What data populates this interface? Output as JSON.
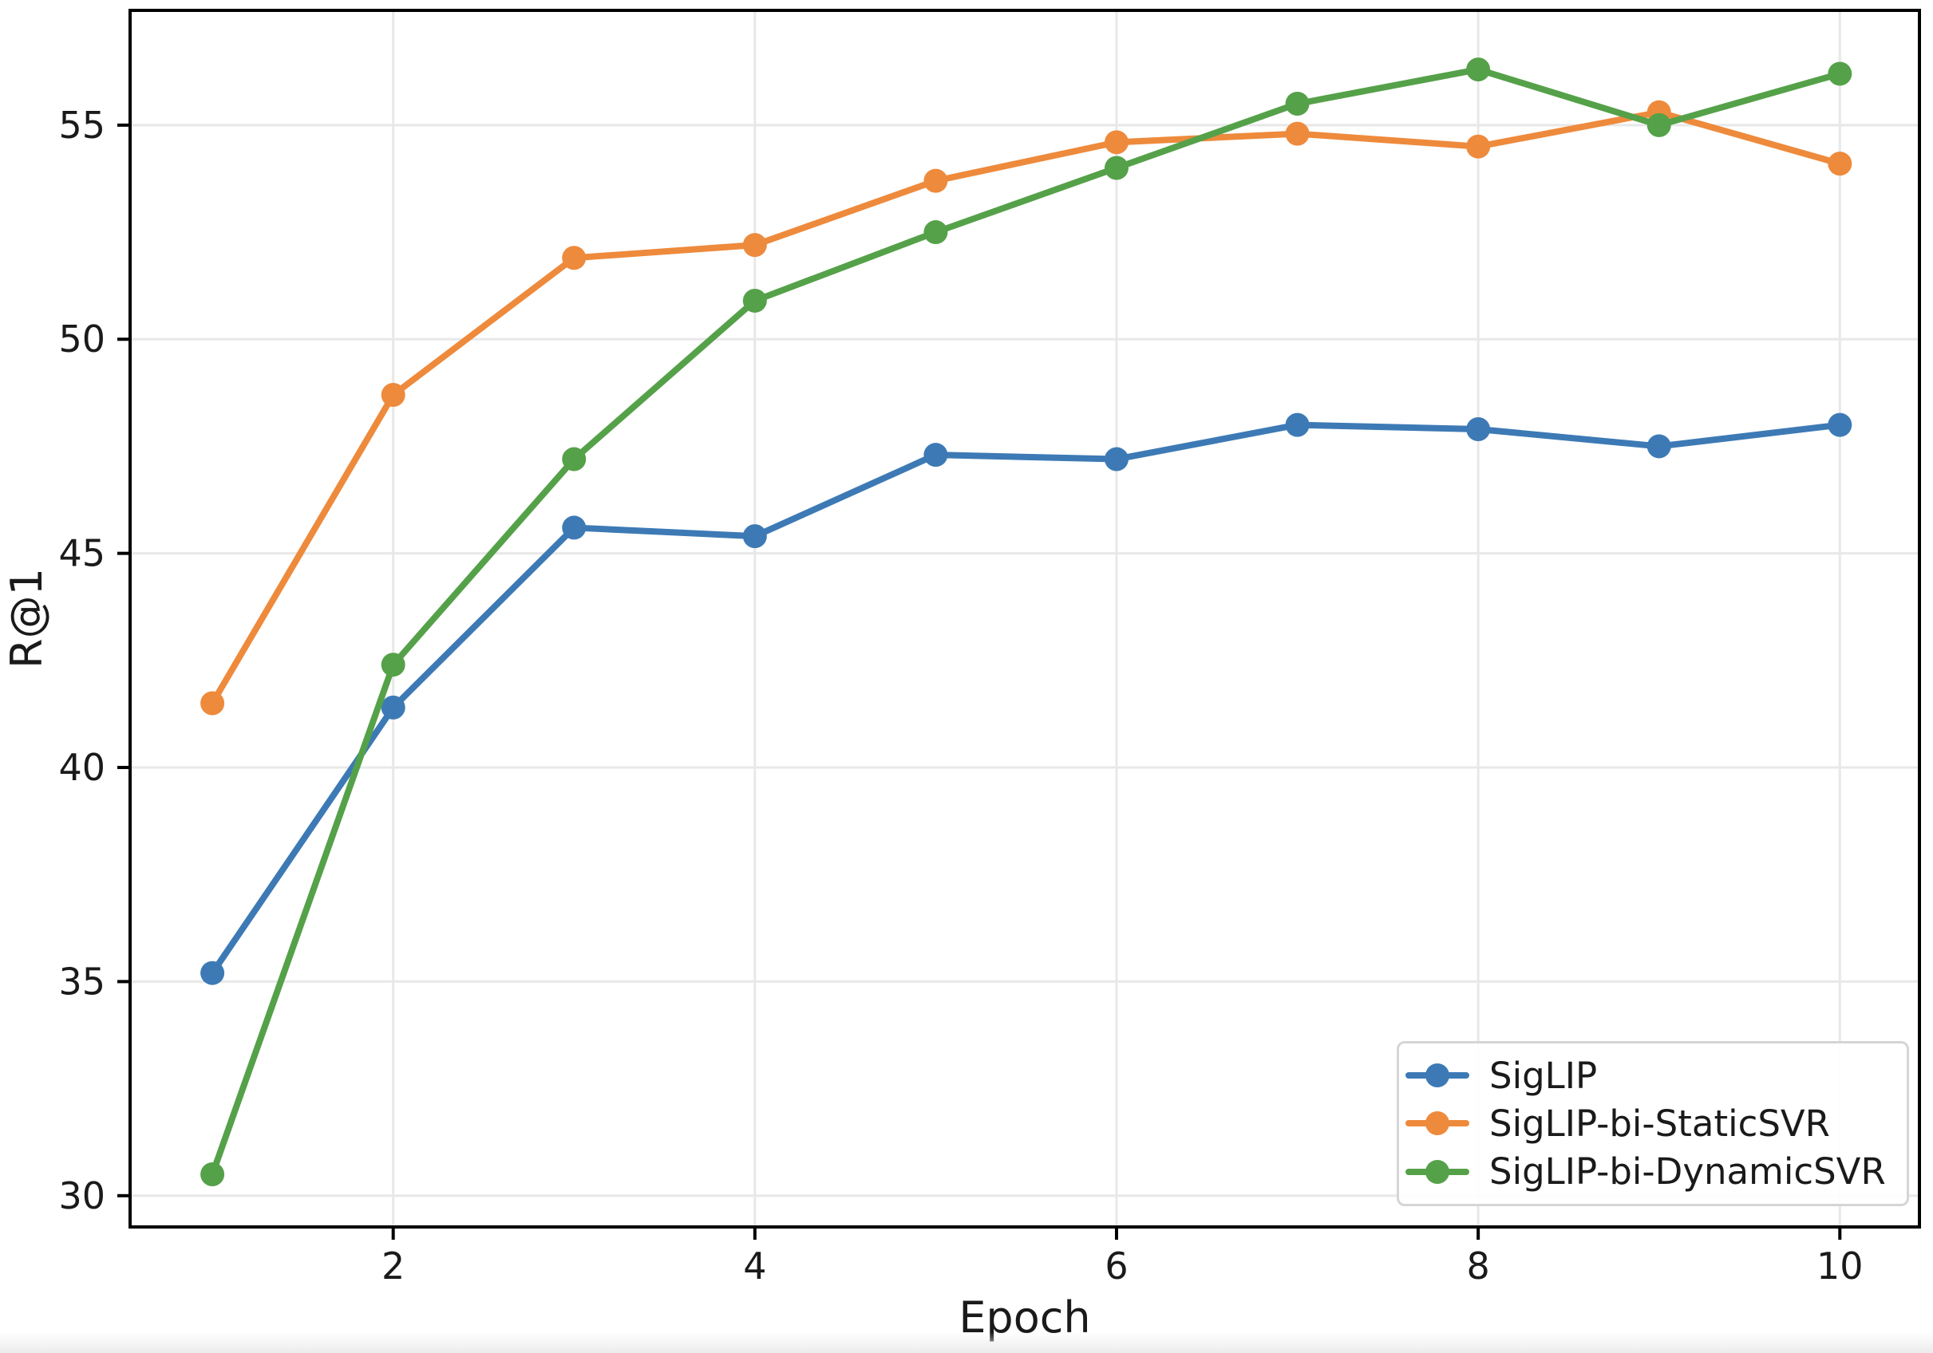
{
  "figure": {
    "xlabel": "Epoch",
    "ylabel": "R@1",
    "background": "#ffffff",
    "grid_color": "#e8e8e8",
    "axis_color": "#000000",
    "text_color": "#1a1a1a",
    "x_ticks": [
      2,
      4,
      6,
      8,
      10
    ],
    "y_ticks": [
      30,
      35,
      40,
      45,
      50,
      55
    ]
  },
  "chart_data": {
    "type": "line",
    "title": "",
    "xlabel": "Epoch",
    "ylabel": "R@1",
    "x": [
      1,
      2,
      3,
      4,
      5,
      6,
      7,
      8,
      9,
      10
    ],
    "series": [
      {
        "name": "SigLIP",
        "color": "#3d7ab5",
        "values": [
          35.2,
          41.4,
          45.6,
          45.4,
          47.3,
          47.2,
          48.0,
          47.9,
          47.5,
          48.0
        ]
      },
      {
        "name": "SigLIP-bi-StaticSVR",
        "color": "#ee8a3c",
        "values": [
          41.5,
          48.7,
          51.9,
          52.2,
          53.7,
          54.6,
          54.8,
          54.5,
          55.3,
          54.1
        ]
      },
      {
        "name": "SigLIP-bi-DynamicSVR",
        "color": "#55a149",
        "values": [
          30.5,
          42.4,
          47.2,
          50.9,
          52.5,
          54.0,
          55.5,
          56.3,
          55.0,
          56.2
        ]
      }
    ],
    "xlim": [
      0.545,
      10.44
    ],
    "ylim": [
      29.27,
      57.68
    ],
    "grid": true,
    "legend_position": "lower right",
    "marker": "circle",
    "line_width": 8,
    "marker_size": 30
  }
}
